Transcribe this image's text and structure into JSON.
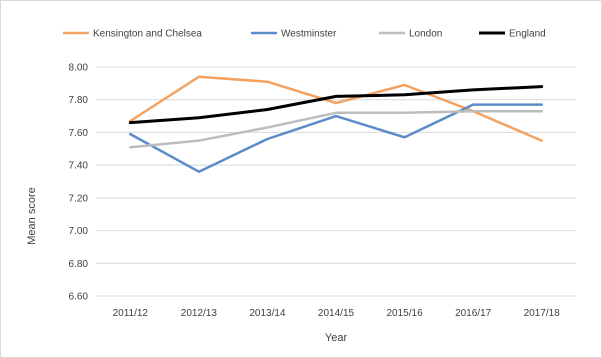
{
  "chart_data": {
    "type": "line",
    "title": "",
    "xlabel": "Year",
    "ylabel": "Mean score",
    "categories": [
      "2011/12",
      "2012/13",
      "2013/14",
      "2014/15",
      "2015/16",
      "2016/17",
      "2017/18"
    ],
    "ylim": [
      6.6,
      8.0
    ],
    "yticks": [
      "6.60",
      "6.80",
      "7.00",
      "7.20",
      "7.40",
      "7.60",
      "7.80",
      "8.00"
    ],
    "grid": true,
    "legend_position": "top",
    "series": [
      {
        "name": "Kensington and Chelsea",
        "color": "#f4a261",
        "values": [
          7.67,
          7.94,
          7.91,
          7.78,
          7.89,
          7.73,
          7.55
        ]
      },
      {
        "name": "Westminster",
        "color": "#5b8cc8",
        "values": [
          7.59,
          7.36,
          7.56,
          7.7,
          7.57,
          7.77,
          7.77
        ]
      },
      {
        "name": "London",
        "color": "#bdbdbd",
        "values": [
          7.51,
          7.55,
          7.63,
          7.72,
          7.72,
          7.73,
          7.73
        ]
      },
      {
        "name": "England",
        "color": "#000000",
        "values": [
          7.66,
          7.69,
          7.74,
          7.82,
          7.83,
          7.86,
          7.88
        ]
      }
    ]
  }
}
